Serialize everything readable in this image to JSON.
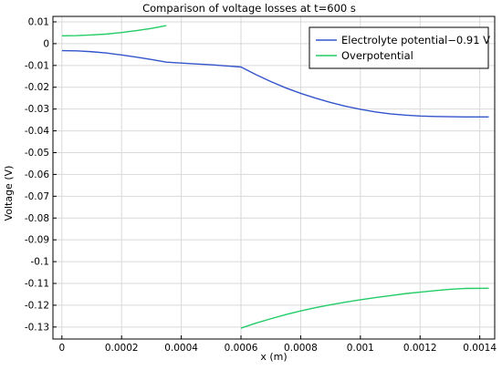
{
  "chart_data": {
    "type": "line",
    "title": "Comparison of voltage losses at t=600 s",
    "xlabel": "x (m)",
    "ylabel": "Voltage (V)",
    "xlim": [
      -3e-05,
      0.00145
    ],
    "ylim": [
      -0.1355,
      0.0125
    ],
    "grid": true,
    "legend_position": "top-right",
    "x_ticks": [
      {
        "value": 0,
        "label": "0"
      },
      {
        "value": 0.0002,
        "label": "0.0002"
      },
      {
        "value": 0.0004,
        "label": "0.0004"
      },
      {
        "value": 0.0006,
        "label": "0.0006"
      },
      {
        "value": 0.0008,
        "label": "0.0008"
      },
      {
        "value": 0.001,
        "label": "0.001"
      },
      {
        "value": 0.0012,
        "label": "0.0012"
      },
      {
        "value": 0.0014,
        "label": "0.0014"
      }
    ],
    "y_ticks": [
      {
        "value": 0.01,
        "label": "0.01"
      },
      {
        "value": 0,
        "label": "0"
      },
      {
        "value": -0.01,
        "label": "-0.01"
      },
      {
        "value": -0.02,
        "label": "-0.02"
      },
      {
        "value": -0.03,
        "label": "-0.03"
      },
      {
        "value": -0.04,
        "label": "-0.04"
      },
      {
        "value": -0.05,
        "label": "-0.05"
      },
      {
        "value": -0.06,
        "label": "-0.06"
      },
      {
        "value": -0.07,
        "label": "-0.07"
      },
      {
        "value": -0.08,
        "label": "-0.08"
      },
      {
        "value": -0.09,
        "label": "-0.09"
      },
      {
        "value": -0.1,
        "label": "-0.1"
      },
      {
        "value": -0.11,
        "label": "-0.11"
      },
      {
        "value": -0.12,
        "label": "-0.12"
      },
      {
        "value": -0.13,
        "label": "-0.13"
      }
    ],
    "series": [
      {
        "name": "Electrolyte potential−0.91 V",
        "color": "#3355cc",
        "segments": [
          [
            [
              0,
              -0.0032
            ],
            [
              5e-05,
              -0.0033
            ],
            [
              0.0001,
              -0.0037
            ],
            [
              0.00015,
              -0.0043
            ],
            [
              0.0002,
              -0.0052
            ],
            [
              0.00025,
              -0.0062
            ],
            [
              0.0003,
              -0.0073
            ],
            [
              0.00035,
              -0.0085
            ],
            [
              0.0004,
              -0.0089
            ],
            [
              0.00045,
              -0.0093
            ],
            [
              0.0005,
              -0.0097
            ],
            [
              0.00055,
              -0.0102
            ],
            [
              0.0006,
              -0.0107
            ],
            [
              0.00065,
              -0.0142
            ],
            [
              0.0007,
              -0.0174
            ],
            [
              0.00075,
              -0.0203
            ],
            [
              0.0008,
              -0.0228
            ],
            [
              0.00085,
              -0.025
            ],
            [
              0.0009,
              -0.027
            ],
            [
              0.00095,
              -0.0287
            ],
            [
              0.001,
              -0.0301
            ],
            [
              0.00105,
              -0.0313
            ],
            [
              0.0011,
              -0.0322
            ],
            [
              0.00115,
              -0.0328
            ],
            [
              0.0012,
              -0.0332
            ],
            [
              0.00125,
              -0.0334
            ],
            [
              0.0013,
              -0.0335
            ],
            [
              0.00135,
              -0.0336
            ],
            [
              0.00143,
              -0.0336
            ]
          ]
        ]
      },
      {
        "name": "Overpotential",
        "color": "#22cc66",
        "segments": [
          [
            [
              0,
              0.0036
            ],
            [
              5e-05,
              0.0037
            ],
            [
              0.0001,
              0.004
            ],
            [
              0.00015,
              0.0044
            ],
            [
              0.0002,
              0.0051
            ],
            [
              0.00025,
              0.006
            ],
            [
              0.0003,
              0.007
            ],
            [
              0.00035,
              0.0083
            ]
          ],
          [
            [
              0.0006,
              -0.1305
            ],
            [
              0.00065,
              -0.1282
            ],
            [
              0.0007,
              -0.1262
            ],
            [
              0.00075,
              -0.1243
            ],
            [
              0.0008,
              -0.1226
            ],
            [
              0.00085,
              -0.1211
            ],
            [
              0.0009,
              -0.1198
            ],
            [
              0.00095,
              -0.1186
            ],
            [
              0.001,
              -0.1175
            ],
            [
              0.00105,
              -0.1165
            ],
            [
              0.0011,
              -0.1156
            ],
            [
              0.00115,
              -0.1147
            ],
            [
              0.0012,
              -0.114
            ],
            [
              0.00125,
              -0.1133
            ],
            [
              0.0013,
              -0.1127
            ],
            [
              0.00135,
              -0.1123
            ],
            [
              0.00143,
              -0.1122
            ]
          ]
        ]
      }
    ]
  }
}
